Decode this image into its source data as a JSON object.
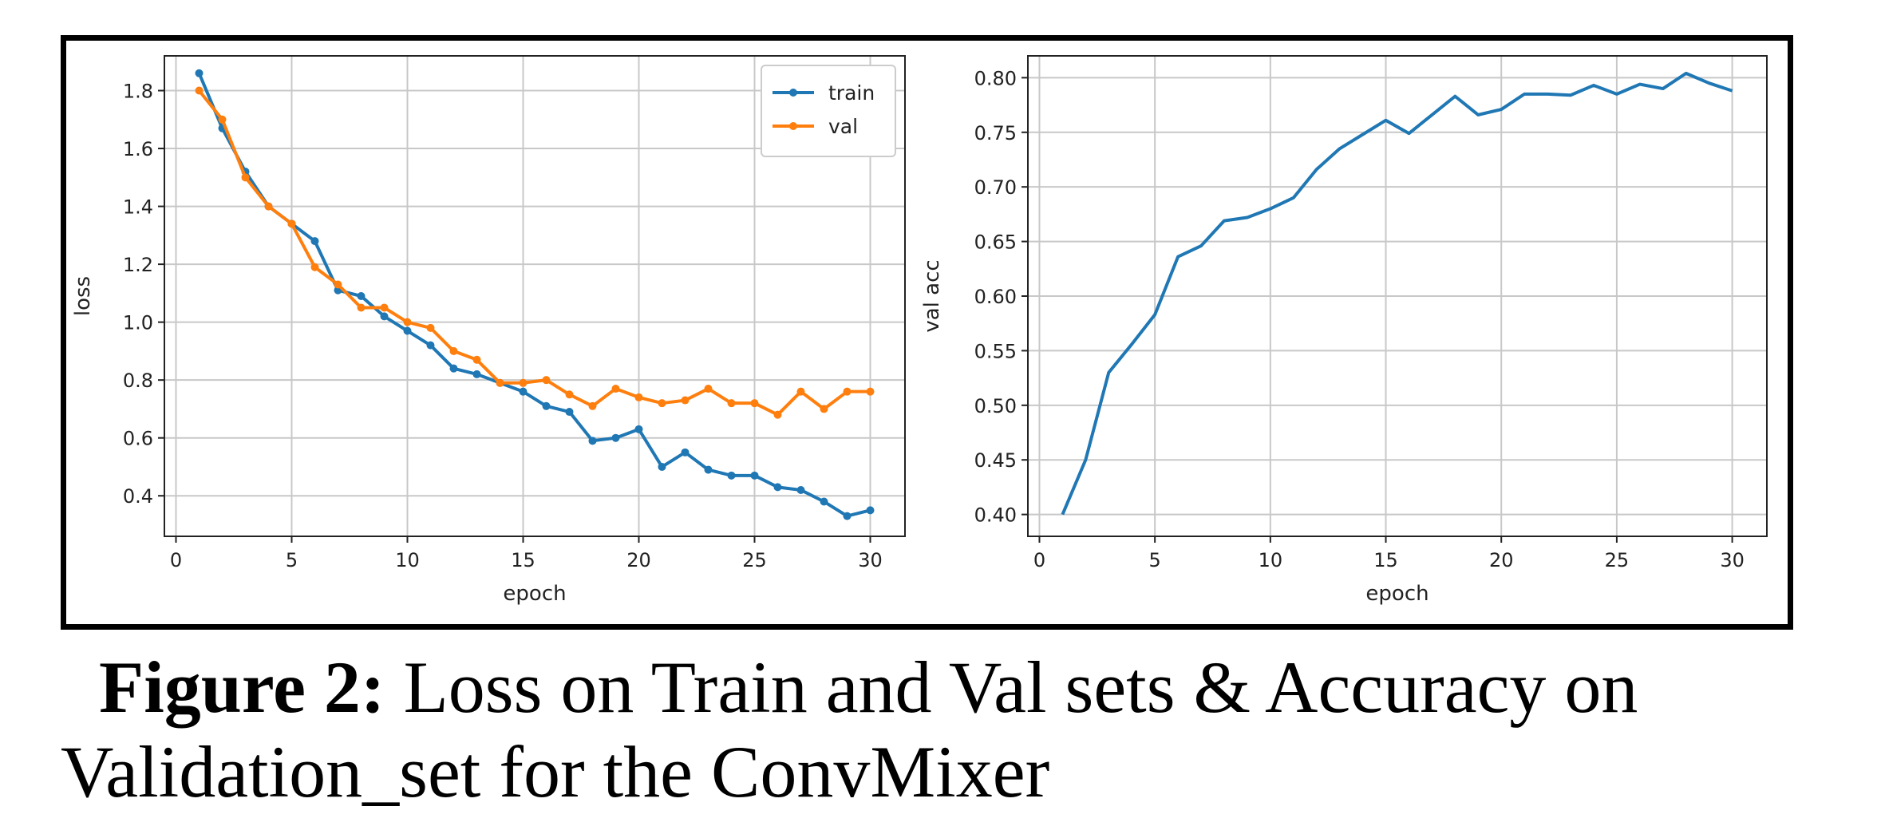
{
  "chart_data": [
    {
      "type": "line",
      "xlabel": "epoch",
      "ylabel": "loss",
      "xlim": [
        -0.5,
        31.5
      ],
      "ylim": [
        0.26,
        1.92
      ],
      "xticks": [
        0,
        5,
        10,
        15,
        20,
        25,
        30
      ],
      "yticks": [
        0.4,
        0.6,
        0.8,
        1.0,
        1.2,
        1.4,
        1.6,
        1.8
      ],
      "ytick_labels": [
        "0.4",
        "0.6",
        "0.8",
        "1.0",
        "1.2",
        "1.4",
        "1.6",
        "1.8"
      ],
      "grid": true,
      "legend": "top-right",
      "x": [
        1,
        2,
        3,
        4,
        5,
        6,
        7,
        8,
        9,
        10,
        11,
        12,
        13,
        14,
        15,
        16,
        17,
        18,
        19,
        20,
        21,
        22,
        23,
        24,
        25,
        26,
        27,
        28,
        29,
        30
      ],
      "series": [
        {
          "name": "train",
          "color": "#1f77b4",
          "marker": "dot",
          "values": [
            1.86,
            1.67,
            1.52,
            1.4,
            1.34,
            1.28,
            1.11,
            1.09,
            1.02,
            0.97,
            0.92,
            0.84,
            0.82,
            0.79,
            0.76,
            0.71,
            0.69,
            0.59,
            0.6,
            0.63,
            0.5,
            0.55,
            0.49,
            0.47,
            0.47,
            0.43,
            0.42,
            0.38,
            0.33,
            0.35
          ]
        },
        {
          "name": "val",
          "color": "#ff7f0e",
          "marker": "dot",
          "values": [
            1.8,
            1.7,
            1.5,
            1.4,
            1.34,
            1.19,
            1.13,
            1.05,
            1.05,
            1.0,
            0.98,
            0.9,
            0.87,
            0.79,
            0.79,
            0.8,
            0.75,
            0.71,
            0.77,
            0.74,
            0.72,
            0.73,
            0.77,
            0.72,
            0.72,
            0.68,
            0.76,
            0.7,
            0.76,
            0.76
          ]
        }
      ]
    },
    {
      "type": "line",
      "xlabel": "epoch",
      "ylabel": "val acc",
      "xlim": [
        -0.5,
        31.5
      ],
      "ylim": [
        0.38,
        0.82
      ],
      "xticks": [
        0,
        5,
        10,
        15,
        20,
        25,
        30
      ],
      "yticks": [
        0.4,
        0.45,
        0.5,
        0.55,
        0.6,
        0.65,
        0.7,
        0.75,
        0.8
      ],
      "ytick_labels": [
        "0.40",
        "0.45",
        "0.50",
        "0.55",
        "0.60",
        "0.65",
        "0.70",
        "0.75",
        "0.80"
      ],
      "grid": true,
      "x": [
        1,
        2,
        3,
        4,
        5,
        6,
        7,
        8,
        9,
        10,
        11,
        12,
        13,
        14,
        15,
        16,
        17,
        18,
        19,
        20,
        21,
        22,
        23,
        24,
        25,
        26,
        27,
        28,
        29,
        30
      ],
      "series": [
        {
          "color": "#1f77b4",
          "values": [
            0.4,
            0.45,
            0.53,
            0.556,
            0.583,
            0.636,
            0.646,
            0.669,
            0.672,
            0.68,
            0.69,
            0.716,
            0.735,
            0.748,
            0.761,
            0.749,
            0.766,
            0.783,
            0.766,
            0.771,
            0.785,
            0.785,
            0.784,
            0.793,
            0.785,
            0.794,
            0.79,
            0.804,
            0.795,
            0.788
          ]
        }
      ]
    }
  ],
  "caption": {
    "label": "Figure 2:",
    "text_line1": " Loss on Train and Val sets & Accuracy on",
    "text_line2": "Validation_set for the ConvMixer"
  }
}
